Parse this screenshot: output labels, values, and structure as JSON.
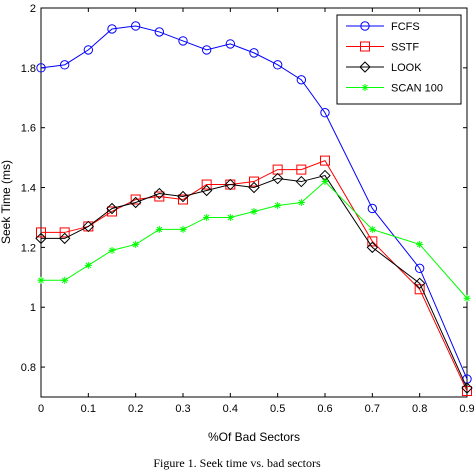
{
  "caption": "Figure 1.   Seek time vs. bad sectors",
  "chart_data": {
    "type": "line",
    "title": "",
    "xlabel": "%Of Bad Sectors",
    "ylabel": "Seek Time (ms)",
    "xlim": [
      0,
      0.9
    ],
    "ylim": [
      0.7,
      2.0
    ],
    "xticks": [
      0,
      0.1,
      0.2,
      0.3,
      0.4,
      0.5,
      0.6,
      0.7,
      0.8,
      0.9
    ],
    "xtick_labels": [
      "0",
      "0.1",
      "0.2",
      "0.3",
      "0.4",
      "0.5",
      "0.6",
      "0.7",
      "0.8",
      "0.9"
    ],
    "yticks": [
      0.8,
      1.0,
      1.2,
      1.4,
      1.6,
      1.8,
      2.0
    ],
    "ytick_labels": [
      "0.8",
      "1",
      "1.2",
      "1.4",
      "1.6",
      "1.8",
      "2"
    ],
    "grid": false,
    "legend_position": "top-right",
    "x": [
      0,
      0.05,
      0.1,
      0.15,
      0.2,
      0.25,
      0.3,
      0.35,
      0.4,
      0.45,
      0.5,
      0.55,
      0.6,
      0.7,
      0.8,
      0.9
    ],
    "series": [
      {
        "name": "FCFS",
        "color": "#0000ff",
        "marker": "circle",
        "values": [
          1.8,
          1.81,
          1.86,
          1.93,
          1.94,
          1.92,
          1.89,
          1.86,
          1.88,
          1.85,
          1.81,
          1.76,
          1.65,
          1.33,
          1.13,
          0.76
        ]
      },
      {
        "name": "SSTF",
        "color": "#ff0000",
        "marker": "square",
        "values": [
          1.25,
          1.25,
          1.27,
          1.32,
          1.36,
          1.37,
          1.36,
          1.41,
          1.41,
          1.42,
          1.46,
          1.46,
          1.49,
          1.22,
          1.06,
          0.72
        ]
      },
      {
        "name": "LOOK",
        "color": "#000000",
        "marker": "diamond",
        "values": [
          1.23,
          1.23,
          1.27,
          1.33,
          1.35,
          1.38,
          1.37,
          1.39,
          1.41,
          1.4,
          1.43,
          1.42,
          1.44,
          1.2,
          1.08,
          0.73
        ]
      },
      {
        "name": "SCAN 100",
        "color": "#00ff00",
        "marker": "star",
        "values": [
          1.09,
          1.09,
          1.14,
          1.19,
          1.21,
          1.26,
          1.26,
          1.3,
          1.3,
          1.32,
          1.34,
          1.35,
          1.42,
          1.26,
          1.21,
          1.03
        ]
      }
    ]
  }
}
